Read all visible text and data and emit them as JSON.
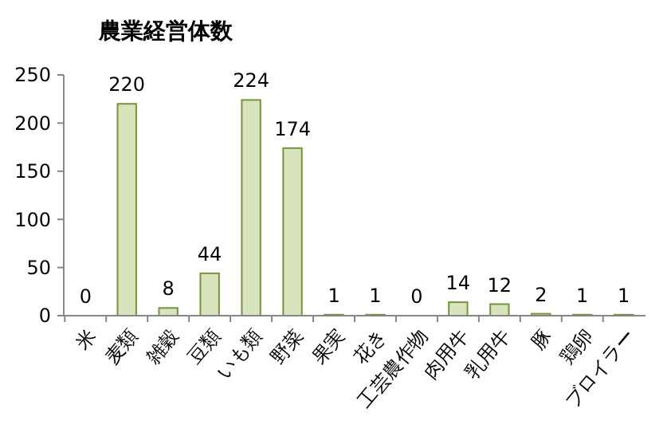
{
  "chart_data": {
    "type": "bar",
    "title": "農業経営体数",
    "categories": [
      "米",
      "麦類",
      "雑穀",
      "豆類",
      "いも類",
      "野菜",
      "果実",
      "花き",
      "工芸農作物",
      "肉用牛",
      "乳用牛",
      "豚",
      "鶏卵",
      "ブロイラー"
    ],
    "values": [
      0,
      220,
      8,
      44,
      224,
      174,
      1,
      1,
      0,
      14,
      12,
      2,
      1,
      1
    ],
    "color": "#d7e4bd",
    "ylim": [
      0,
      250
    ],
    "yticks": [
      0,
      50,
      100,
      150,
      200,
      250
    ],
    "data_labels": true
  }
}
